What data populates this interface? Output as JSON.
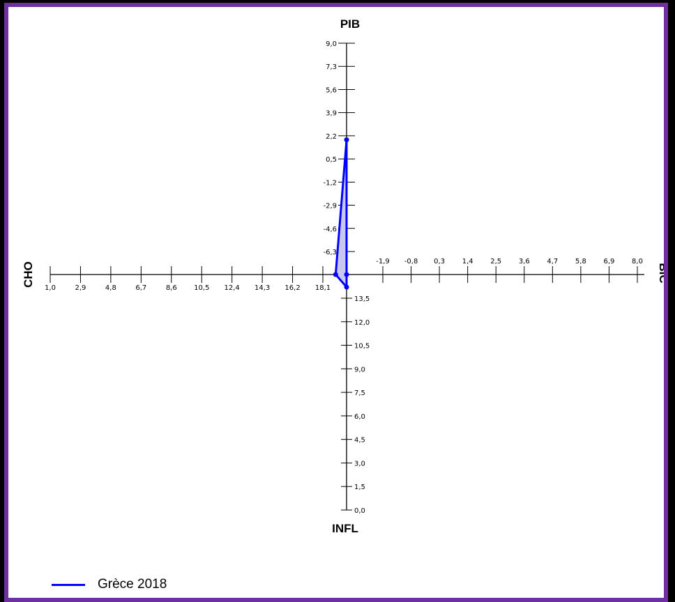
{
  "chart_data": {
    "type": "radar-cross",
    "axes": {
      "pib": {
        "title": "PIB",
        "ticks": [
          "9,0",
          "7,3",
          "5,6",
          "3,9",
          "2,2",
          "0,5",
          "-1,2",
          "-2,9",
          "-4,6",
          "-6,3"
        ],
        "range": [
          -8.0,
          9.0
        ]
      },
      "bic": {
        "title": "BIC",
        "ticks": [
          "-1,9",
          "-0,8",
          "0,3",
          "1,4",
          "2,5",
          "3,6",
          "4,7",
          "5,8",
          "6,9",
          "8,0"
        ],
        "range": [
          -3.0,
          8.0
        ]
      },
      "infl": {
        "title": "INFL",
        "ticks": [
          "13,5",
          "12,0",
          "10,5",
          "9,0",
          "7,5",
          "6,0",
          "4,5",
          "3,0",
          "1,5",
          "0,0"
        ],
        "range": [
          15.0,
          0.0
        ]
      },
      "cho": {
        "title": "CHO",
        "ticks": [
          "1,0",
          "2,9",
          "4,8",
          "6,7",
          "8,6",
          "10,5",
          "12,4",
          "14,3",
          "16,2",
          "18,1"
        ],
        "range": [
          1.0,
          20.0
        ]
      }
    },
    "series": [
      {
        "name": "Grèce 2018",
        "color": "#0000ff",
        "fill": "#c8c8f0",
        "values": {
          "pib": 1.9,
          "bic": -3.0,
          "infl": 0.8,
          "cho": 19.3
        }
      }
    ],
    "legend_position": "bottom-left"
  }
}
